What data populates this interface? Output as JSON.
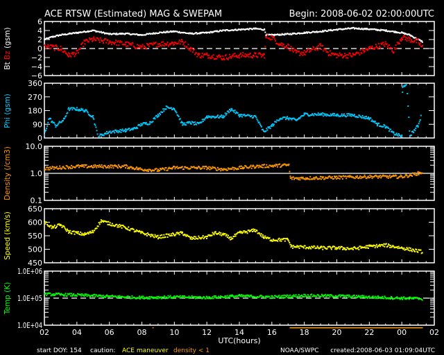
{
  "header": {
    "title": "ACE RTSW (Estimated) MAG & SWEPAM",
    "begin": "Begin: 2008-06-02 02:00:00UTC"
  },
  "x_axis": {
    "label": "UTC(hours)",
    "range_hours": [
      2,
      26
    ],
    "tick_labels": [
      "02",
      "04",
      "06",
      "08",
      "10",
      "12",
      "14",
      "16",
      "18",
      "20",
      "22",
      "00",
      "02"
    ]
  },
  "footer": {
    "start_doy": "start DOY: 154",
    "caution": "caution:",
    "ace_maneuver": "ACE maneuver",
    "density_low": "density < 1",
    "agency": "NOAA/SWPC",
    "created": "created:2008-06-03 01:09:04UTC"
  },
  "colors": {
    "bt": "#ffffff",
    "bz": "#ff0000",
    "phi": "#00ccff",
    "density": "#ff9900",
    "speed": "#ffff00",
    "temp": "#00ff00",
    "maneuver": "#ffff00"
  },
  "caution_bars": [
    {
      "type": "density_low",
      "from": 17.1,
      "to": 25.3
    },
    {
      "type": "density_low",
      "from": 8.65,
      "to": 8.72
    }
  ],
  "chart_data": [
    {
      "type": "scatter",
      "ylabel": [
        "Bt",
        "Bz",
        "(gsm)"
      ],
      "scale": "linear",
      "ylim": [
        -6,
        6
      ],
      "yticks": [
        6,
        4,
        2,
        0,
        -2,
        -4,
        -6
      ],
      "ytick_labels": [
        "6",
        "4",
        "2",
        "0",
        "−2",
        "−4",
        "−6"
      ],
      "reference_line": {
        "value": 0,
        "style": "dashed"
      },
      "series": [
        {
          "name": "Bt",
          "color": "#ffffff",
          "x": [
            2,
            2.5,
            3,
            4,
            5,
            6,
            7,
            8,
            9,
            10,
            11,
            12,
            13,
            14,
            15,
            15.55,
            15.65,
            16,
            17,
            18,
            19,
            20,
            21,
            22,
            23,
            24,
            24.5,
            25,
            25.3
          ],
          "y": [
            2,
            2.6,
            3,
            3.5,
            4,
            3.2,
            3.3,
            3,
            3.5,
            3.8,
            3.3,
            3.5,
            4,
            4.2,
            4.4,
            4.2,
            3,
            3,
            3.2,
            3.5,
            3.8,
            4.2,
            4.5,
            4.3,
            4,
            3.5,
            3,
            2,
            1.5
          ]
        },
        {
          "name": "Bz",
          "color": "#ff0000",
          "x": [
            2,
            3,
            3.5,
            4,
            4.5,
            5,
            6,
            7,
            8,
            9,
            10,
            10.5,
            11,
            11.5,
            12,
            13,
            14,
            15,
            15.55,
            15.65,
            16,
            16.5,
            17,
            17.5,
            18,
            19,
            19.5,
            20,
            21,
            22,
            23,
            23.5,
            24,
            24.5,
            25,
            25.3
          ],
          "y": [
            0.5,
            0,
            -1.5,
            -1,
            1.5,
            2,
            1.5,
            1,
            0.3,
            1,
            1.2,
            1.5,
            0,
            -1.5,
            -1.5,
            -2,
            -1.5,
            -1.5,
            -1.5,
            2.5,
            2.5,
            1,
            0.5,
            -1,
            -1,
            0.5,
            -1,
            -1.5,
            -1.5,
            0,
            1,
            -0.5,
            2.5,
            2,
            1.5,
            0
          ]
        }
      ]
    },
    {
      "type": "scatter",
      "ylabel": [
        "Phi",
        "(gsm)"
      ],
      "scale": "linear",
      "ylim": [
        0,
        360
      ],
      "yticks": [
        360,
        270,
        180,
        90,
        0
      ],
      "ytick_labels": [
        "360",
        "270",
        "180",
        "90",
        "0"
      ],
      "series": [
        {
          "name": "Phi",
          "color": "#00ccff",
          "x": [
            2,
            2.3,
            2.7,
            3.2,
            3.5,
            4,
            4.5,
            5,
            5.3,
            6,
            7,
            7.5,
            8,
            8.5,
            9,
            9.5,
            10,
            10.5,
            11,
            11.5,
            12,
            13,
            13.5,
            14,
            15,
            15.5,
            16,
            16.5,
            17,
            17.5,
            18,
            19,
            20,
            21,
            22,
            22.5,
            23,
            23.5,
            24,
            24.05,
            24.3,
            24.5,
            25,
            25.2
          ],
          "y": [
            20,
            130,
            80,
            120,
            190,
            190,
            180,
            140,
            10,
            40,
            50,
            60,
            90,
            100,
            150,
            200,
            195,
            90,
            100,
            90,
            140,
            140,
            190,
            150,
            140,
            40,
            80,
            130,
            130,
            115,
            155,
            155,
            150,
            150,
            130,
            90,
            75,
            30,
            10,
            330,
            360,
            15,
            80,
            150
          ]
        }
      ]
    },
    {
      "type": "scatter",
      "ylabel": [
        "Density",
        "(/cm3)"
      ],
      "scale": "log",
      "ylim": [
        0.1,
        10
      ],
      "yticks": [
        10,
        1,
        0.1
      ],
      "ytick_labels": [
        "10.0",
        "1.0",
        "0.1"
      ],
      "reference_line": {
        "value": 1,
        "style": "solid"
      },
      "series": [
        {
          "name": "Density",
          "color": "#ff9900",
          "x": [
            2,
            4,
            7,
            8,
            9,
            10,
            12,
            13,
            15,
            17.05,
            17.15,
            20,
            22,
            24,
            24.5,
            25,
            25.3
          ],
          "y": [
            1.5,
            1.8,
            1.8,
            1.4,
            1.3,
            1.6,
            1.6,
            1.4,
            1.8,
            2,
            0.65,
            0.7,
            0.75,
            0.75,
            0.85,
            1.0,
            1.1
          ]
        }
      ]
    },
    {
      "type": "scatter",
      "ylabel": [
        "Speed",
        "(km/s)"
      ],
      "scale": "linear",
      "ylim": [
        450,
        650
      ],
      "yticks": [
        650,
        600,
        550,
        500,
        450
      ],
      "ytick_labels": [
        "650",
        "600",
        "550",
        "500",
        "450"
      ],
      "series": [
        {
          "name": "Speed",
          "color": "#ffff00",
          "x": [
            2,
            2.5,
            3,
            3.5,
            4,
            4.5,
            5,
            5.5,
            6,
            7,
            8,
            9,
            10,
            10.5,
            11,
            12,
            12.5,
            13,
            13.5,
            14,
            15,
            15.5,
            16,
            17,
            17.2,
            18,
            19,
            20,
            21,
            22,
            23,
            24,
            25.3
          ],
          "y": [
            600,
            580,
            590,
            565,
            560,
            555,
            565,
            605,
            595,
            580,
            560,
            545,
            555,
            560,
            540,
            545,
            560,
            555,
            540,
            560,
            570,
            545,
            535,
            535,
            510,
            508,
            505,
            505,
            502,
            510,
            515,
            505,
            490
          ]
        }
      ]
    },
    {
      "type": "scatter",
      "ylabel": [
        "Temp",
        "(K)"
      ],
      "scale": "log",
      "ylim": [
        10000,
        1000000
      ],
      "yticks": [
        1000000,
        100000,
        10000
      ],
      "ytick_labels": [
        "1.0E+06",
        "1.0E+05",
        "1.0E+04"
      ],
      "reference_line": {
        "value": 100000,
        "style": "dashed"
      },
      "series": [
        {
          "name": "Temp",
          "color": "#00ff00",
          "x": [
            2,
            4,
            6,
            8,
            10,
            12,
            14,
            16,
            18,
            20,
            22,
            24,
            25.3
          ],
          "y": [
            140000,
            130000,
            115000,
            105000,
            110000,
            105000,
            120000,
            110000,
            125000,
            120000,
            110000,
            100000,
            95000
          ]
        }
      ]
    }
  ]
}
